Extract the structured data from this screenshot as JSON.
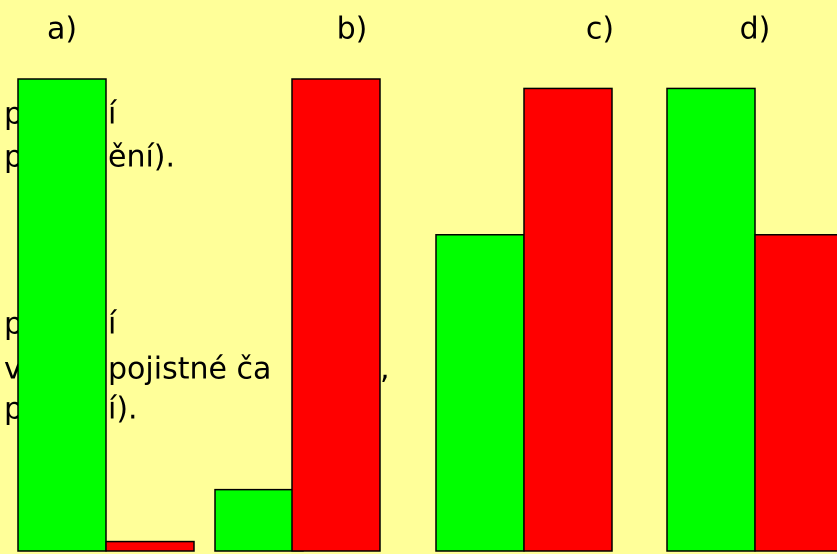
{
  "chart_data": {
    "type": "bar",
    "categories": [
      "a)",
      "b)",
      "c)",
      "d)"
    ],
    "series": [
      {
        "color": "#00ff00",
        "values": [
          100,
          13,
          67,
          98
        ]
      },
      {
        "color": "#ff0000",
        "values": [
          2,
          100,
          98,
          67
        ]
      }
    ],
    "ylim": [
      0,
      100
    ]
  },
  "background_text": [
    [
      "p",
      "í"
    ],
    [
      "p",
      "ění)."
    ],
    [
      "p",
      "í"
    ],
    [
      "v",
      "pojistné ča",
      ","
    ],
    [
      "p",
      "í)."
    ]
  ]
}
